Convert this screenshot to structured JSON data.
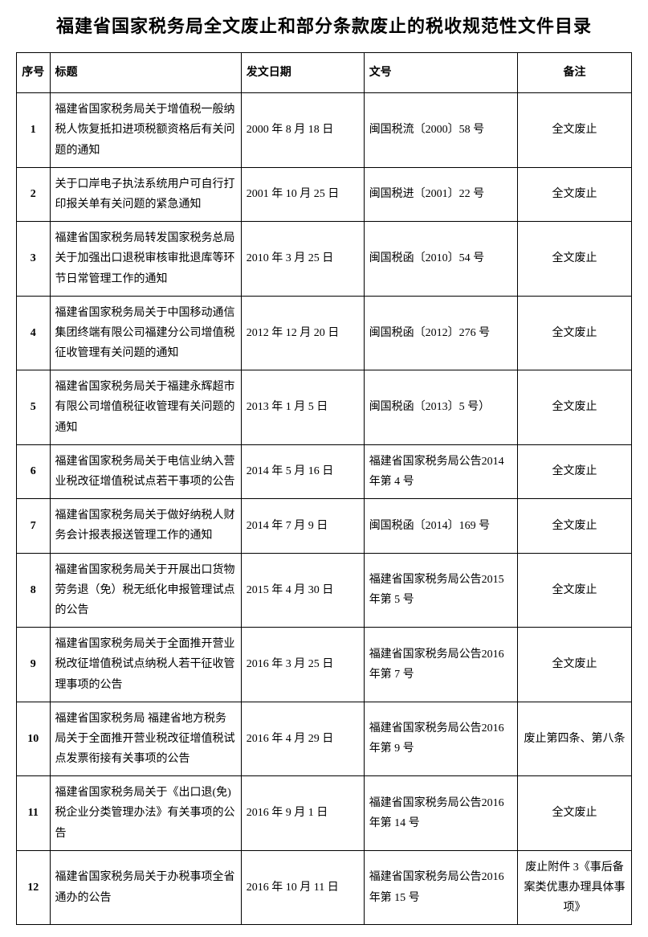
{
  "page_title": "福建省国家税务局全文废止和部分条款废止的税收规范性文件目录",
  "table": {
    "columns": [
      {
        "key": "seq",
        "label": "序号"
      },
      {
        "key": "title",
        "label": "标题"
      },
      {
        "key": "date",
        "label": "发文日期"
      },
      {
        "key": "docnum",
        "label": "文号"
      },
      {
        "key": "remark",
        "label": "备注"
      }
    ],
    "rows": [
      {
        "seq": "1",
        "title": "福建省国家税务局关于增值税一般纳税人恢复抵扣进项税额资格后有关问题的通知",
        "date": "2000 年 8 月 18 日",
        "docnum": "闽国税流〔2000〕58 号",
        "remark": "全文废止"
      },
      {
        "seq": "2",
        "title": "关于口岸电子执法系统用户可自行打印报关单有关问题的紧急通知",
        "date": "2001 年 10 月 25 日",
        "docnum": "闽国税进〔2001〕22 号",
        "remark": "全文废止"
      },
      {
        "seq": "3",
        "title": "福建省国家税务局转发国家税务总局关于加强出口退税审核审批退库等环节日常管理工作的通知",
        "date": "2010 年 3 月 25 日",
        "docnum": "闽国税函〔2010〕54 号",
        "remark": "全文废止"
      },
      {
        "seq": "4",
        "title": "福建省国家税务局关于中国移动通信集团终端有限公司福建分公司增值税征收管理有关问题的通知",
        "date": "2012 年 12 月 20 日",
        "docnum": "闽国税函〔2012〕276 号",
        "remark": "全文废止"
      },
      {
        "seq": "5",
        "title": "福建省国家税务局关于福建永辉超市有限公司增值税征收管理有关问题的通知",
        "date": "2013 年 1 月 5 日",
        "docnum": "闽国税函〔2013〕5 号）",
        "remark": "全文废止"
      },
      {
        "seq": "6",
        "title": "福建省国家税务局关于电信业纳入营业税改征增值税试点若干事项的公告",
        "date": "2014 年 5 月 16 日",
        "docnum": "福建省国家税务局公告2014 年第 4 号",
        "remark": "全文废止"
      },
      {
        "seq": "7",
        "title": "福建省国家税务局关于做好纳税人财务会计报表报送管理工作的通知",
        "date": "2014 年 7 月 9 日",
        "docnum": "闽国税函〔2014〕169 号",
        "remark": "全文废止"
      },
      {
        "seq": "8",
        "title": "福建省国家税务局关于开展出口货物劳务退（免）税无纸化申报管理试点的公告",
        "date": "2015 年 4 月 30 日",
        "docnum": "福建省国家税务局公告2015 年第 5 号",
        "remark": "全文废止"
      },
      {
        "seq": "9",
        "title": "福建省国家税务局关于全面推开营业税改征增值税试点纳税人若干征收管理事项的公告",
        "date": "2016 年 3 月 25 日",
        "docnum": "福建省国家税务局公告2016 年第 7 号",
        "remark": "全文废止"
      },
      {
        "seq": "10",
        "title": "福建省国家税务局 福建省地方税务局关于全面推开营业税改征增值税试点发票衔接有关事项的公告",
        "date": "2016 年 4 月 29 日",
        "docnum": "福建省国家税务局公告2016 年第 9 号",
        "remark": "废止第四条、第八条"
      },
      {
        "seq": "11",
        "title": "福建省国家税务局关于《出口退(免)税企业分类管理办法》有关事项的公告",
        "date": "2016 年 9 月 1 日",
        "docnum": "福建省国家税务局公告2016 年第 14 号",
        "remark": "全文废止"
      },
      {
        "seq": "12",
        "title": "福建省国家税务局关于办税事项全省通办的公告",
        "date": "2016 年 10 月 11 日",
        "docnum": "福建省国家税务局公告2016 年第 15 号",
        "remark": "废止附件 3《事后备案类优惠办理具体事项》"
      }
    ]
  },
  "styling": {
    "background_color": "#ffffff",
    "border_color": "#000000",
    "text_color": "#000000",
    "title_fontsize": 22,
    "cell_fontsize": 14,
    "line_height": 1.8,
    "col_widths": {
      "seq": 38,
      "title": 218,
      "date": 140,
      "docnum": 175,
      "remark": 130
    }
  }
}
